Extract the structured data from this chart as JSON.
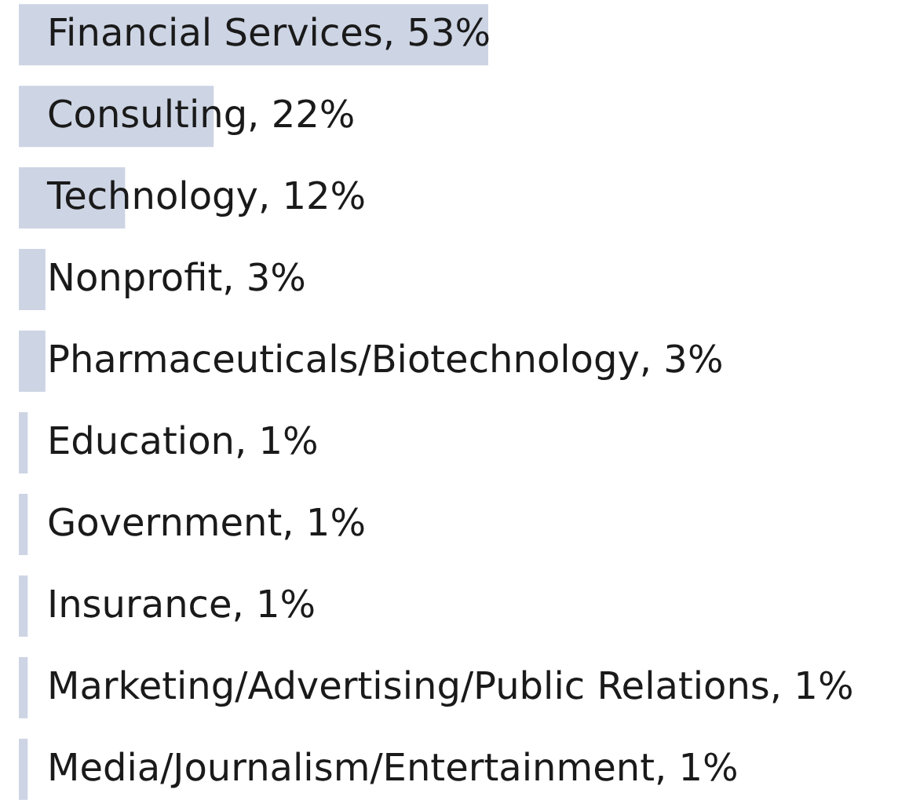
{
  "chart_data": {
    "type": "bar",
    "orientation": "horizontal",
    "categories": [
      null,
      null,
      null,
      null,
      null,
      null,
      null,
      null,
      null,
      null
    ],
    "values": [
      53,
      22,
      12,
      3,
      3,
      1,
      1,
      1,
      1,
      1
    ],
    "value_labels": [
      "Financial Services, 53%",
      "Consulting, 22%",
      "Technology, 12%",
      "Nonprofit, 3%",
      "Pharmaceuticals/Biotechnology, 3%",
      "Education, 1%",
      "Government, 1%",
      "Insurance, 1%",
      "Marketing/Advertising/Public Relations, 1%",
      "Media/Journalism/Entertainment, 1%"
    ],
    "color": "#cdd4e4"
  }
}
